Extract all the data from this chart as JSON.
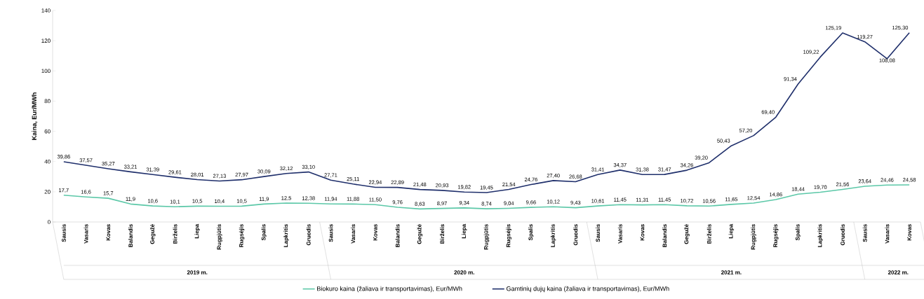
{
  "chart_data": {
    "type": "line",
    "ylabel": "Kaina, Eur/MWh",
    "categories": [
      "Sausis",
      "Vasaris",
      "Kovas",
      "Balandis",
      "Gegužė",
      "Birželis",
      "Liepa",
      "Rugpjūtis",
      "Rugsėjis",
      "Spalis",
      "Lapkritis",
      "Gruodis",
      "Sausis",
      "Vasaris",
      "Kovas",
      "Balandis",
      "Gegužė",
      "Birželis",
      "Liepa",
      "Rugpjūtis",
      "Rugsėjis",
      "Spalis",
      "Lapkritis",
      "Gruodis",
      "Sausis",
      "Vasaris",
      "Kovas",
      "Balandis",
      "Gegužė",
      "Birželis",
      "Liepa",
      "Rugpjūtis",
      "Rugsėjis",
      "Spalis",
      "Lapkritis",
      "Gruodis",
      "Sausis",
      "Vasaris",
      "Kovas"
    ],
    "annotations": [
      "2019 m.",
      "2020 m.",
      "2021 m.",
      "2022 m."
    ],
    "series": [
      {
        "name": "Biokuro kaina (žaliava ir transportavimas), Eur/MWh",
        "color": "#5cc8a8",
        "values": [
          17.7,
          16.6,
          15.7,
          11.9,
          10.6,
          10.1,
          10.5,
          10.4,
          10.5,
          11.9,
          12.5,
          12.38,
          11.94,
          11.88,
          11.5,
          9.76,
          8.63,
          8.97,
          9.34,
          8.74,
          9.04,
          9.66,
          10.12,
          9.43,
          10.61,
          11.45,
          11.31,
          11.45,
          10.72,
          10.56,
          11.65,
          12.54,
          14.86,
          18.44,
          19.7,
          21.56,
          23.64,
          24.46,
          24.58
        ],
        "value_labels": [
          "17,7",
          "16,6",
          "15,7",
          "11,9",
          "10,6",
          "10,1",
          "10,5",
          "10,4",
          "10,5",
          "11,9",
          "12,5",
          "12,38",
          "11,94",
          "11,88",
          "11,50",
          "9,76",
          "8,63",
          "8,97",
          "9,34",
          "8,74",
          "9,04",
          "9,66",
          "10,12",
          "9,43",
          "10,61",
          "11,45",
          "11,31",
          "11,45",
          "10,72",
          "10,56",
          "11,65",
          "12,54",
          "14,86",
          "18,44",
          "19,70",
          "21,56",
          "23,64",
          "24,46",
          "24,58"
        ]
      },
      {
        "name": "Gamtinių dujų kaina (žaliava ir transportavimas), Eur/MWh",
        "color": "#1f2f6b",
        "values": [
          39.86,
          37.57,
          35.27,
          33.21,
          31.39,
          29.61,
          28.01,
          27.13,
          27.97,
          30.09,
          32.12,
          33.1,
          27.71,
          25.11,
          22.94,
          22.89,
          21.48,
          20.93,
          19.82,
          19.45,
          21.54,
          24.76,
          27.4,
          26.68,
          31.41,
          34.37,
          31.38,
          31.47,
          34.26,
          39.2,
          50.43,
          57.2,
          69.4,
          91.34,
          109.22,
          125.19,
          119.27,
          108.08,
          125.3
        ],
        "value_labels": [
          "39,86",
          "37,57",
          "35,27",
          "33,21",
          "31,39",
          "29,61",
          "28,01",
          "27,13",
          "27,97",
          "30,09",
          "32,12",
          "33,10",
          "27,71",
          "25,11",
          "22,94",
          "22,89",
          "21,48",
          "20,93",
          "19,82",
          "19,45",
          "21,54",
          "24,76",
          "27,40",
          "26,68",
          "31,41",
          "34,37",
          "31,38",
          "31,47",
          "34,26",
          "39,20",
          "50,43",
          "57,20",
          "69,40",
          "91,34",
          "109,22",
          "125,19",
          "119,27",
          "108,08",
          "125,30"
        ]
      }
    ],
    "ylim": [
      0,
      140
    ],
    "yticks": [
      0,
      20,
      40,
      60,
      80,
      100,
      120,
      140
    ],
    "grid": false,
    "legend": "bottom",
    "marker": "none",
    "line_style": "solid"
  }
}
